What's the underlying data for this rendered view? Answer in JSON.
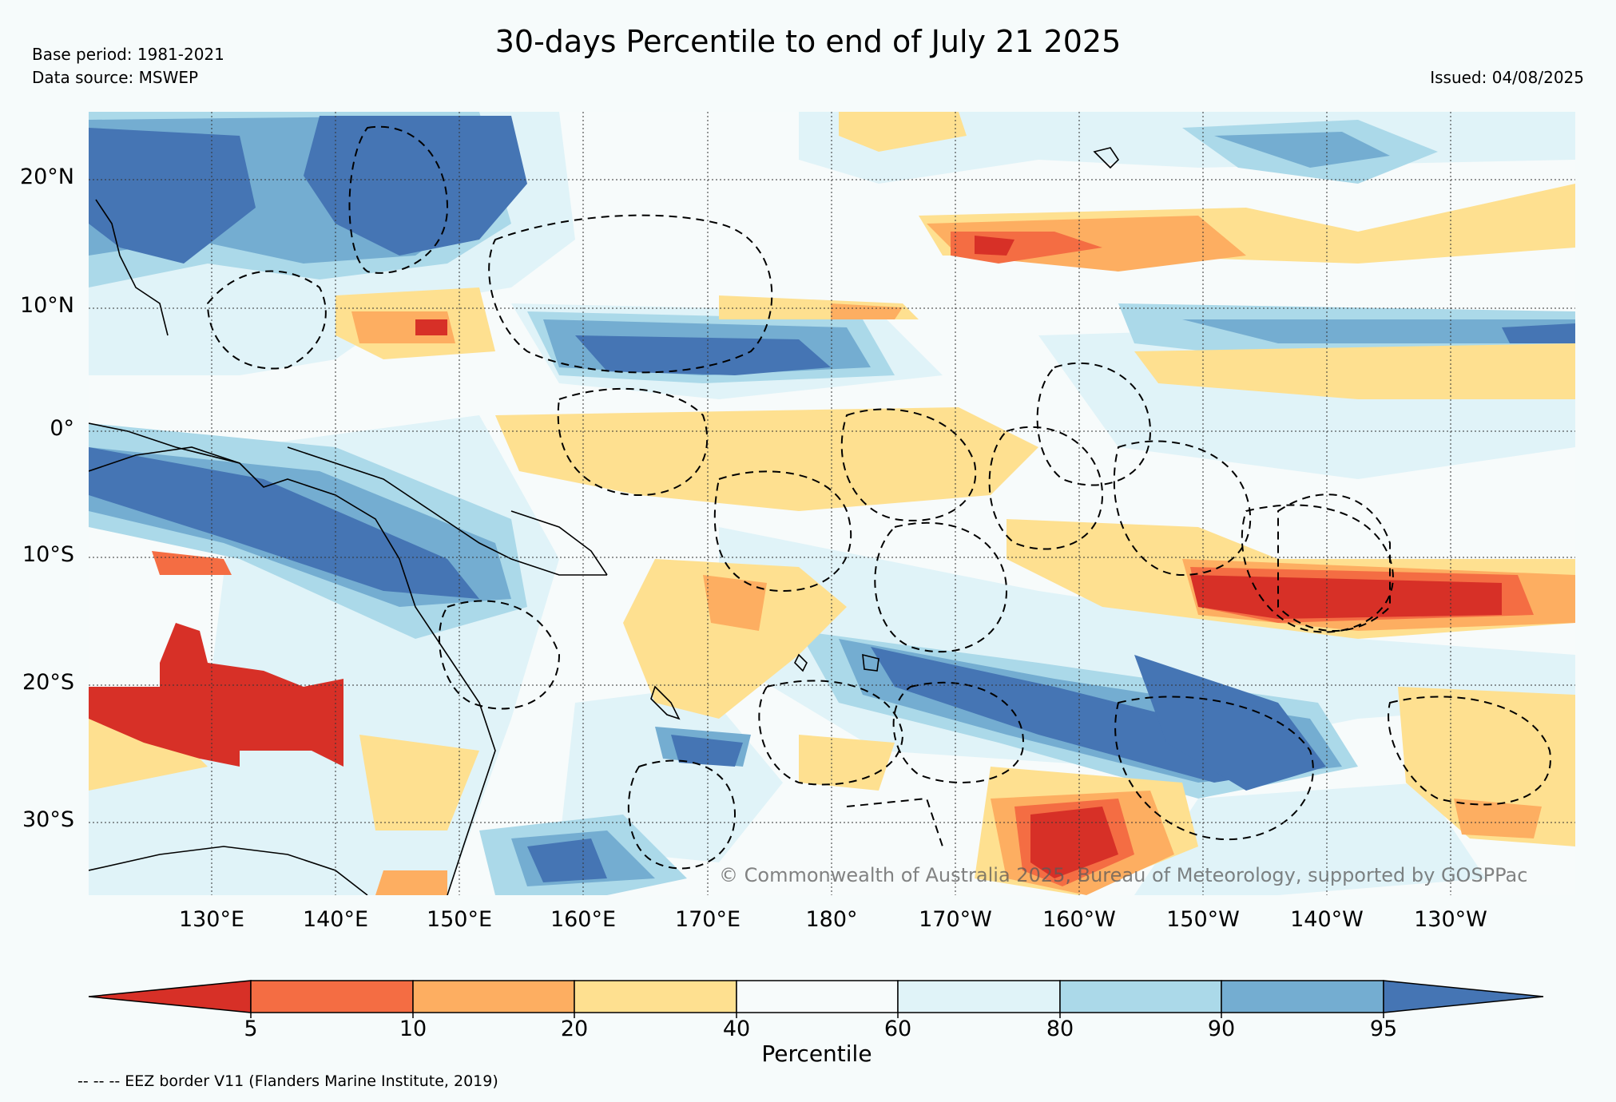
{
  "header": {
    "title": "30-days Percentile to end of July 21 2025",
    "base_period": "Base period: 1981-2021",
    "data_source": "Data source: MSWEP",
    "issued": "Issued: 04/08/2025"
  },
  "map": {
    "lat_labels": [
      "20°N",
      "10°N",
      "0°",
      "10°S",
      "20°S",
      "30°S"
    ],
    "lon_labels": [
      "130°E",
      "140°E",
      "150°E",
      "160°E",
      "170°E",
      "180°",
      "170°W",
      "160°W",
      "150°W",
      "140°W",
      "130°W"
    ],
    "watermark": "© Commonwealth of Australia 2025, Bureau of Meteorology, supported by GOSPPac"
  },
  "colorbar": {
    "label": "Percentile",
    "ticks": [
      "5",
      "10",
      "20",
      "40",
      "60",
      "80",
      "90",
      "95"
    ],
    "colors": [
      "#d73027",
      "#f46d43",
      "#fdae61",
      "#fee090",
      "#f7fbfb",
      "#e0f3f8",
      "#abd9e9",
      "#74add1",
      "#4575b4"
    ]
  },
  "footer": {
    "eez_note": "-- -- -- EEZ border V11 (Flanders Marine Institute, 2019)"
  }
}
